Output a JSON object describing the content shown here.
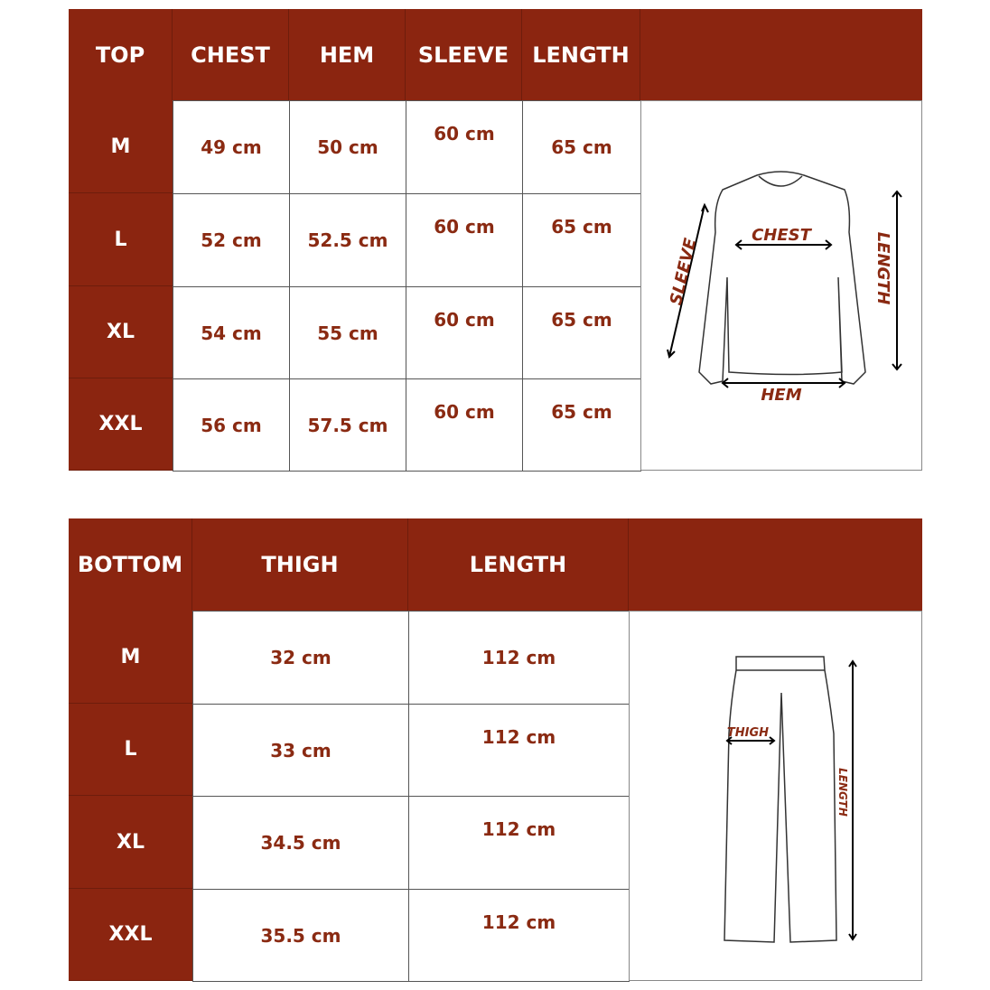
{
  "top": {
    "headers": [
      "TOP",
      "CHEST",
      "HEM",
      "SLEEVE",
      "LENGTH"
    ],
    "rows": [
      {
        "size": "M",
        "chest": "49 cm",
        "hem": "50 cm",
        "sleeve": "60 cm",
        "length": "65 cm"
      },
      {
        "size": "L",
        "chest": "52 cm",
        "hem": "52.5 cm",
        "sleeve": "60 cm",
        "length": "65 cm"
      },
      {
        "size": "XL",
        "chest": "54 cm",
        "hem": "55 cm",
        "sleeve": "60 cm",
        "length": "65 cm"
      },
      {
        "size": "XXL",
        "chest": "56 cm",
        "hem": "57.5 cm",
        "sleeve": "60 cm",
        "length": "65 cm"
      }
    ],
    "diagram_labels": {
      "chest": "CHEST",
      "sleeve": "SLEEVE",
      "length": "LENGTH",
      "hem": "HEM"
    }
  },
  "bottom": {
    "headers": [
      "BOTTOM",
      "THIGH",
      "LENGTH"
    ],
    "rows": [
      {
        "size": "M",
        "thigh": "32 cm",
        "length": "112 cm"
      },
      {
        "size": "L",
        "thigh": "33 cm",
        "length": "112 cm"
      },
      {
        "size": "XL",
        "thigh": "34.5 cm",
        "length": "112 cm"
      },
      {
        "size": "XXL",
        "thigh": "35.5 cm",
        "length": "112 cm"
      }
    ],
    "diagram_labels": {
      "thigh": "THIGH",
      "length": "LENGTH"
    }
  },
  "colors": {
    "header_bg": "#8b2510",
    "value_text": "#8a2a12"
  }
}
